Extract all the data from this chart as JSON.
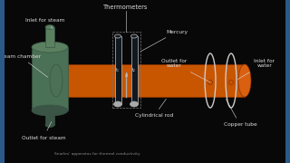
{
  "bg_color": "#080808",
  "border_color": "#2a5a8a",
  "labels": {
    "thermometers": "Thermometers",
    "inlet_steam": "Inlet for steam",
    "steam_chamber": "Steam chamber",
    "outlet_steam": "Outlet for steam",
    "mercury": "Mercury",
    "outlet_water": "Outlet for\nwater",
    "inlet_water": "Inlet for\nwater",
    "cylindrical_rod": "Cylindrical rod",
    "copper_tube": "Copper tube"
  },
  "rod_color": "#c85500",
  "rod_color_light": "#d96010",
  "rod_edge": "#8a3000",
  "chamber_color": "#4a7055",
  "chamber_light": "#5a8060",
  "chamber_dark": "#3a5545",
  "thermometer_bg": "#111122",
  "thermometer_edge": "#aaaaaa",
  "mercury_color": "#aaaaaa",
  "tube_color": "#cccccc",
  "text_color": "#dddddd",
  "label_fontsize": 4.2,
  "title_fontsize": 4.8,
  "border_width": 5
}
